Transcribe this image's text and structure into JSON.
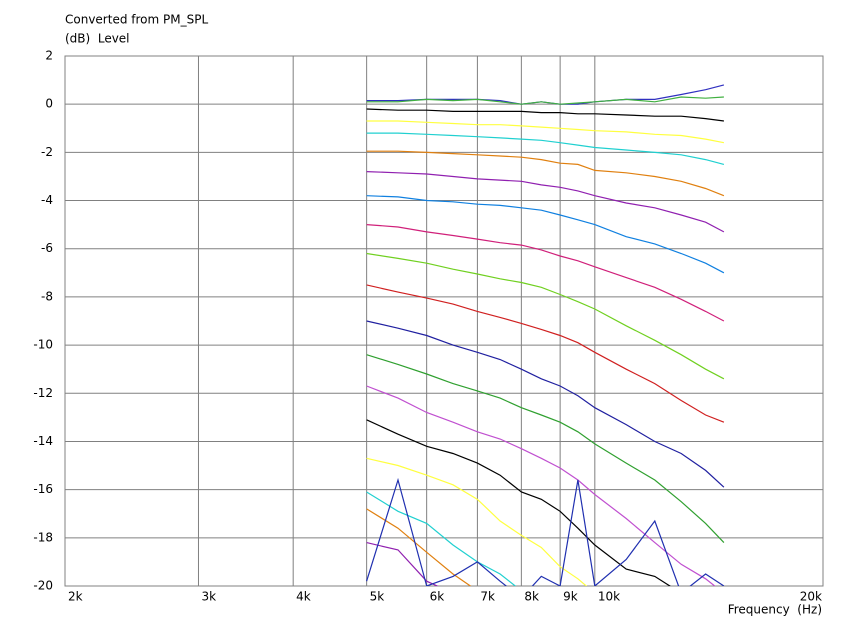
{
  "chart_data": {
    "type": "line",
    "title": "Converted from PM_SPL",
    "ylabel": "(dB)  Level",
    "xlabel": "Frequency  (Hz)",
    "xscale": "log",
    "grid": true,
    "xlim": [
      2000,
      20000
    ],
    "ylim": [
      -20,
      2
    ],
    "xticks": [
      {
        "value": 2000,
        "label": "2k"
      },
      {
        "value": 3000,
        "label": "3k"
      },
      {
        "value": 4000,
        "label": "4k"
      },
      {
        "value": 5000,
        "label": "5k"
      },
      {
        "value": 6000,
        "label": "6k"
      },
      {
        "value": 7000,
        "label": "7k"
      },
      {
        "value": 8000,
        "label": "8k"
      },
      {
        "value": 9000,
        "label": "9k"
      },
      {
        "value": 10000,
        "label": "10k"
      },
      {
        "value": 20000,
        "label": "20k"
      }
    ],
    "yticks": [
      2,
      0,
      -2,
      -4,
      -6,
      -8,
      -10,
      -12,
      -14,
      -16,
      -18,
      -20
    ],
    "x": [
      5000,
      5500,
      6000,
      6500,
      7000,
      7500,
      8000,
      8500,
      9000,
      9500,
      10000,
      11000,
      12000,
      13000,
      14000,
      14800
    ],
    "series": [
      {
        "color": "#3030c0",
        "values": [
          0.15,
          0.15,
          0.2,
          0.2,
          0.2,
          0.15,
          0.0,
          0.1,
          0.0,
          0.0,
          0.1,
          0.2,
          0.2,
          0.4,
          0.6,
          0.8
        ]
      },
      {
        "color": "#40b040",
        "values": [
          0.1,
          0.1,
          0.2,
          0.15,
          0.2,
          0.1,
          0.0,
          0.1,
          0.0,
          0.05,
          0.1,
          0.2,
          0.1,
          0.3,
          0.25,
          0.3
        ]
      },
      {
        "color": "#000000",
        "values": [
          -0.2,
          -0.25,
          -0.25,
          -0.3,
          -0.3,
          -0.3,
          -0.3,
          -0.35,
          -0.35,
          -0.4,
          -0.4,
          -0.45,
          -0.5,
          -0.5,
          -0.6,
          -0.7
        ]
      },
      {
        "color": "#ffff40",
        "values": [
          -0.7,
          -0.7,
          -0.75,
          -0.8,
          -0.85,
          -0.85,
          -0.9,
          -0.95,
          -1.0,
          -1.05,
          -1.1,
          -1.15,
          -1.25,
          -1.3,
          -1.45,
          -1.6
        ]
      },
      {
        "color": "#20d0d0",
        "values": [
          -1.2,
          -1.2,
          -1.25,
          -1.3,
          -1.35,
          -1.4,
          -1.45,
          -1.5,
          -1.6,
          -1.7,
          -1.8,
          -1.9,
          -2.0,
          -2.1,
          -2.3,
          -2.5
        ]
      },
      {
        "color": "#e08010",
        "values": [
          -1.95,
          -1.95,
          -2.0,
          -2.05,
          -2.1,
          -2.15,
          -2.2,
          -2.3,
          -2.45,
          -2.5,
          -2.75,
          -2.85,
          -3.0,
          -3.2,
          -3.5,
          -3.8
        ]
      },
      {
        "color": "#9020b0",
        "values": [
          -2.8,
          -2.85,
          -2.9,
          -3.0,
          -3.1,
          -3.15,
          -3.2,
          -3.35,
          -3.45,
          -3.6,
          -3.8,
          -4.1,
          -4.3,
          -4.6,
          -4.9,
          -5.3
        ]
      },
      {
        "color": "#1080e0",
        "values": [
          -3.8,
          -3.85,
          -4.0,
          -4.05,
          -4.15,
          -4.2,
          -4.3,
          -4.4,
          -4.6,
          -4.8,
          -5.0,
          -5.5,
          -5.8,
          -6.2,
          -6.6,
          -7.0
        ]
      },
      {
        "color": "#d0207a",
        "values": [
          -5.0,
          -5.1,
          -5.3,
          -5.45,
          -5.6,
          -5.75,
          -5.85,
          -6.05,
          -6.3,
          -6.5,
          -6.75,
          -7.2,
          -7.6,
          -8.1,
          -8.6,
          -9.0
        ]
      },
      {
        "color": "#70d020",
        "values": [
          -6.2,
          -6.4,
          -6.6,
          -6.85,
          -7.05,
          -7.25,
          -7.4,
          -7.6,
          -7.9,
          -8.2,
          -8.5,
          -9.2,
          -9.8,
          -10.4,
          -11.0,
          -11.4
        ]
      },
      {
        "color": "#d02020",
        "values": [
          -7.5,
          -7.8,
          -8.05,
          -8.3,
          -8.6,
          -8.85,
          -9.1,
          -9.35,
          -9.6,
          -9.9,
          -10.3,
          -11.0,
          -11.6,
          -12.3,
          -12.9,
          -13.2
        ]
      },
      {
        "color": "#2020a0",
        "values": [
          -9.0,
          -9.3,
          -9.6,
          -10.0,
          -10.3,
          -10.6,
          -11.0,
          -11.4,
          -11.7,
          -12.1,
          -12.6,
          -13.3,
          -14.0,
          -14.5,
          -15.2,
          -15.9
        ]
      },
      {
        "color": "#30a030",
        "values": [
          -10.4,
          -10.8,
          -11.2,
          -11.6,
          -11.9,
          -12.2,
          -12.6,
          -12.9,
          -13.2,
          -13.6,
          -14.1,
          -14.9,
          -15.6,
          -16.5,
          -17.4,
          -18.2
        ]
      },
      {
        "color": "#c050d0",
        "values": [
          -11.7,
          -12.2,
          -12.8,
          -13.2,
          -13.6,
          -13.9,
          -14.3,
          -14.7,
          -15.1,
          -15.6,
          -16.2,
          -17.2,
          -18.2,
          -19.1,
          -19.7,
          -20.3
        ]
      },
      {
        "color": "#000000",
        "values": [
          -13.1,
          -13.7,
          -14.2,
          -14.5,
          -14.9,
          -15.4,
          -16.1,
          -16.4,
          -16.9,
          -17.6,
          -18.3,
          -19.3,
          -19.6,
          -20.3,
          null,
          null
        ]
      },
      {
        "color": "#ffff40",
        "values": [
          -14.7,
          -15.0,
          -15.4,
          -15.8,
          -16.4,
          -17.3,
          -17.9,
          -18.4,
          -19.2,
          -19.7,
          -20.3,
          null,
          null,
          null,
          null,
          null
        ]
      },
      {
        "color": "#20d0d0",
        "values": [
          -16.1,
          -16.9,
          -17.4,
          -18.3,
          -19.0,
          -19.5,
          -20.2,
          null,
          null,
          null,
          null,
          null,
          null,
          null,
          null,
          null
        ]
      },
      {
        "color": "#e08010",
        "values": [
          -16.8,
          -17.6,
          -18.6,
          -19.5,
          -20.2,
          null,
          null,
          null,
          null,
          null,
          null,
          null,
          null,
          null,
          null,
          null
        ]
      },
      {
        "color": "#9020b0",
        "values": [
          -18.2,
          -18.5,
          -19.8,
          -20.3,
          null,
          null,
          null,
          null,
          null,
          null,
          null,
          null,
          null,
          null,
          null,
          null
        ]
      },
      {
        "color": "#2030b0",
        "values": [
          -19.8,
          -15.6,
          -20.0,
          -19.6,
          -19.0,
          -19.8,
          -20.5,
          -19.6,
          -20.0,
          -15.6,
          -20.0,
          -18.9,
          -17.3,
          -20.3,
          -19.5,
          -20.0
        ]
      }
    ]
  }
}
